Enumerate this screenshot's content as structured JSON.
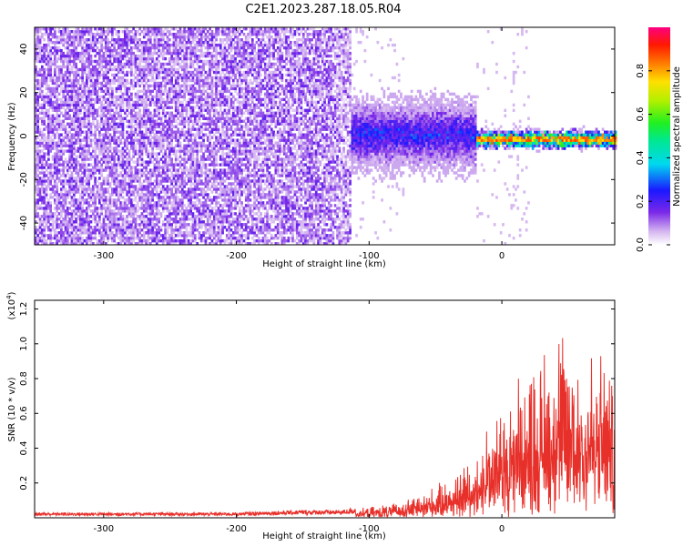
{
  "title": "C2E1.2023.287.18.05.R04",
  "colors": {
    "snr_line": "#e8302a",
    "frame": "#000000"
  },
  "chart_data": [
    {
      "type": "heatmap",
      "xlabel": "Height of straight line (km)",
      "ylabel": "Frequency (Hz)",
      "xlim": [
        -352,
        85
      ],
      "ylim": [
        -50,
        50
      ],
      "xticks": [
        -300,
        -200,
        -100,
        0
      ],
      "yticks": [
        -40,
        -20,
        0,
        20,
        40
      ],
      "colorbar": {
        "label": "Normalized spectral amplitude",
        "range": [
          0,
          1
        ],
        "ticks": [
          0.0,
          0.2,
          0.4,
          0.6,
          0.8
        ],
        "colormap": "rainbow"
      },
      "regions": [
        {
          "x_range": [
            -352,
            -115
          ],
          "description": "noise",
          "freq_range": [
            -50,
            50
          ],
          "amplitude": 0.05
        },
        {
          "x_range": [
            -115,
            -20
          ],
          "description": "broadband signal",
          "freq_center": 0,
          "freq_halfwidth": 12,
          "amplitude": 0.25
        },
        {
          "x_range": [
            -20,
            85
          ],
          "description": "narrow line",
          "freq_center": -2,
          "freq_halfwidth": 3,
          "amplitude": 0.85
        }
      ]
    },
    {
      "type": "line",
      "xlabel": "Height of straight line (km)",
      "ylabel": "SNR (10 * v/v)",
      "scale_label": "(x10",
      "scale_exponent": "4",
      "scale_close": ")",
      "xlim": [
        -352,
        85
      ],
      "ylim": [
        0,
        1.25
      ],
      "xticks": [
        -300,
        -200,
        -100,
        0
      ],
      "yticks": [
        0.2,
        0.4,
        0.6,
        0.8,
        1.0,
        1.2
      ],
      "series": [
        {
          "x": [
            -350,
            -300,
            -250,
            -200,
            -150,
            -120,
            -100,
            -80,
            -60,
            -40,
            -30,
            -20,
            -10,
            0,
            10,
            20,
            30,
            40,
            50,
            60,
            70,
            80,
            85
          ],
          "y": [
            0.02,
            0.02,
            0.02,
            0.02,
            0.03,
            0.03,
            0.05,
            0.07,
            0.12,
            0.18,
            0.25,
            0.32,
            0.45,
            0.55,
            0.65,
            0.7,
            0.8,
            0.9,
            0.88,
            0.85,
            0.8,
            0.75,
            0.72
          ]
        }
      ]
    }
  ]
}
